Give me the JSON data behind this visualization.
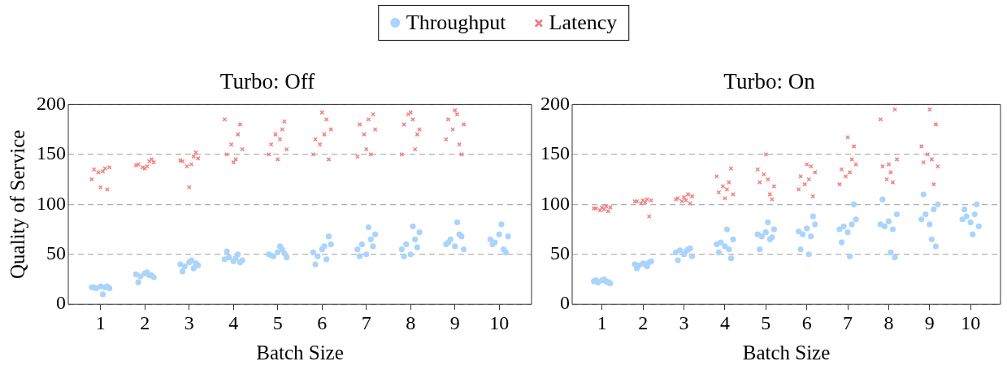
{
  "chart_data": [
    {
      "type": "scatter",
      "title": "Turbo: Off",
      "xlabel": "Batch Size",
      "ylabel": "Quality of Service",
      "xlim": [
        0.27,
        10.73
      ],
      "xticks": [
        1,
        2,
        3,
        4,
        5,
        6,
        7,
        8,
        9,
        10
      ],
      "ylim": [
        0,
        200
      ],
      "yticks": [
        0,
        50,
        100,
        150,
        200
      ],
      "grid": "y",
      "legend": "top",
      "series": [
        {
          "name": "Throughput",
          "color": "#aad4fb",
          "marker": "circle",
          "x": [
            0.8,
            0.9,
            1,
            1.1,
            1.2,
            0.85,
            1.05,
            1.15,
            1.8,
            1.9,
            2,
            2.1,
            2.2,
            1.85,
            2.05,
            2.15,
            2.8,
            2.9,
            3,
            3.1,
            3.2,
            2.85,
            3.05,
            3.15,
            3.8,
            3.9,
            4,
            4.1,
            4.2,
            3.85,
            4.05,
            4.15,
            4.8,
            4.9,
            5,
            5.1,
            5.2,
            4.85,
            5.05,
            5.15,
            5.8,
            5.9,
            6,
            6.1,
            6.2,
            5.85,
            6.05,
            6.15,
            6.8,
            6.9,
            7,
            7.1,
            7.2,
            6.85,
            7.05,
            7.15,
            7.8,
            7.9,
            8,
            8.1,
            8.2,
            7.85,
            8.05,
            8.15,
            8.8,
            8.9,
            9,
            9.1,
            9.2,
            8.85,
            9.05,
            9.15,
            9.8,
            9.9,
            10,
            10.1,
            10.2,
            9.85,
            10.05,
            10.15
          ],
          "values": [
            17,
            16,
            18,
            17,
            16,
            17,
            10,
            18,
            30,
            28,
            31,
            29,
            27,
            22,
            32,
            29,
            40,
            38,
            42,
            36,
            39,
            33,
            44,
            41,
            45,
            47,
            43,
            50,
            44,
            53,
            46,
            42,
            50,
            48,
            52,
            55,
            47,
            49,
            58,
            51,
            52,
            48,
            55,
            45,
            60,
            40,
            58,
            68,
            55,
            60,
            50,
            65,
            70,
            48,
            77,
            58,
            55,
            60,
            50,
            65,
            72,
            48,
            78,
            57,
            60,
            65,
            58,
            70,
            55,
            62,
            82,
            68,
            65,
            62,
            70,
            55,
            68,
            60,
            80,
            52
          ]
        },
        {
          "name": "Latency",
          "color": "#f08080",
          "marker": "cross",
          "x": [
            0.85,
            1.05,
            1.2,
            0.95,
            1.1,
            0.8,
            1.15,
            1,
            1.85,
            2.05,
            2.2,
            1.95,
            2.1,
            1.8,
            2.15,
            2,
            2.85,
            3.05,
            3.2,
            2.95,
            3.1,
            2.8,
            3.15,
            3,
            3.85,
            4.05,
            4.2,
            3.95,
            4.1,
            3.8,
            4.15,
            4,
            4.85,
            5.05,
            5.2,
            4.95,
            5.1,
            4.8,
            5.15,
            5,
            5.85,
            6.05,
            6.2,
            5.95,
            6.1,
            5.8,
            6.15,
            6,
            6.85,
            7.05,
            7.2,
            6.95,
            7.1,
            6.8,
            7.15,
            7,
            7.85,
            8.05,
            8.2,
            7.95,
            8.1,
            7.8,
            8.15,
            8,
            8.85,
            9.05,
            9.2,
            8.95,
            9.1,
            8.8,
            9.15,
            9
          ],
          "values": [
            135,
            133,
            137,
            132,
            136,
            125,
            115,
            117,
            140,
            138,
            142,
            137,
            143,
            139,
            145,
            136,
            143,
            140,
            146,
            138,
            148,
            144,
            152,
            117,
            150,
            145,
            155,
            160,
            170,
            185,
            180,
            142,
            160,
            165,
            155,
            170,
            175,
            150,
            183,
            145,
            165,
            170,
            175,
            160,
            185,
            150,
            145,
            192,
            180,
            185,
            175,
            170,
            150,
            148,
            190,
            155,
            180,
            185,
            175,
            190,
            155,
            150,
            170,
            192,
            185,
            190,
            180,
            175,
            160,
            165,
            150,
            194
          ]
        }
      ]
    },
    {
      "type": "scatter",
      "title": "Turbo: On",
      "xlabel": "Batch Size",
      "xlim": [
        0.27,
        10.73
      ],
      "xticks": [
        1,
        2,
        3,
        4,
        5,
        6,
        7,
        8,
        9,
        10
      ],
      "ylim": [
        0,
        200
      ],
      "yticks": [
        0,
        50,
        100,
        150,
        200
      ],
      "grid": "y",
      "series": [
        {
          "color": "#aad4fb",
          "marker": "circle",
          "x": [
            0.8,
            0.9,
            1,
            1.1,
            1.2,
            0.85,
            1.05,
            1.15,
            1.8,
            1.9,
            2,
            2.1,
            2.2,
            1.85,
            2.05,
            2.15,
            2.8,
            2.9,
            3,
            3.1,
            3.2,
            2.85,
            3.05,
            3.15,
            3.8,
            3.9,
            4,
            4.1,
            4.2,
            3.85,
            4.05,
            4.15,
            4.8,
            4.9,
            5,
            5.1,
            5.2,
            4.85,
            5.05,
            5.15,
            5.8,
            5.9,
            6,
            6.1,
            6.2,
            5.85,
            6.05,
            6.15,
            6.8,
            6.9,
            7,
            7.1,
            7.2,
            6.85,
            7.05,
            7.15,
            7.8,
            7.9,
            8,
            8.1,
            8.2,
            7.85,
            8.05,
            8.15,
            8.8,
            8.9,
            9,
            9.1,
            9.2,
            8.85,
            9.05,
            9.15,
            9.8,
            9.9,
            10,
            10.1,
            10.2,
            9.85,
            10.05,
            10.15
          ],
          "values": [
            23,
            22,
            24,
            23,
            21,
            24,
            25,
            22,
            40,
            39,
            41,
            38,
            43,
            36,
            40,
            42,
            52,
            54,
            50,
            55,
            48,
            44,
            53,
            56,
            60,
            62,
            58,
            55,
            65,
            52,
            75,
            46,
            70,
            68,
            72,
            65,
            75,
            55,
            82,
            67,
            73,
            70,
            76,
            68,
            80,
            55,
            50,
            88,
            75,
            78,
            72,
            80,
            85,
            62,
            48,
            100,
            80,
            78,
            83,
            75,
            90,
            105,
            52,
            47,
            85,
            90,
            80,
            95,
            100,
            110,
            65,
            58,
            85,
            88,
            82,
            90,
            78,
            95,
            70,
            100
          ]
        },
        {
          "color": "#f08080",
          "marker": "cross",
          "x": [
            0.85,
            1.05,
            1.2,
            0.95,
            1.1,
            0.8,
            1.15,
            1,
            1.85,
            2.05,
            2.2,
            1.95,
            2.1,
            1.8,
            2.15,
            2,
            2.85,
            3.05,
            3.2,
            2.95,
            3.1,
            2.8,
            3.15,
            3,
            3.85,
            4.05,
            4.2,
            3.95,
            4.1,
            3.8,
            4.15,
            4,
            4.85,
            5.05,
            5.2,
            4.95,
            5.1,
            4.8,
            5.15,
            5,
            5.85,
            6.05,
            6.2,
            5.95,
            6.1,
            5.8,
            6.15,
            6,
            6.85,
            7.05,
            7.2,
            6.95,
            7.1,
            6.8,
            7.15,
            7,
            7.85,
            8.05,
            8.2,
            7.95,
            8.1,
            7.8,
            8.15,
            8,
            8.85,
            9.05,
            9.2,
            8.95,
            9.1,
            8.8,
            9.15,
            9
          ],
          "values": [
            96,
            95,
            97,
            94,
            98,
            96,
            93,
            97,
            103,
            102,
            104,
            101,
            105,
            103,
            88,
            104,
            106,
            104,
            108,
            103,
            110,
            105,
            101,
            107,
            112,
            115,
            110,
            118,
            122,
            128,
            136,
            106,
            122,
            125,
            118,
            130,
            110,
            135,
            105,
            150,
            128,
            125,
            132,
            120,
            138,
            115,
            108,
            140,
            135,
            132,
            140,
            128,
            145,
            120,
            158,
            167,
            138,
            132,
            145,
            125,
            122,
            185,
            195,
            140,
            142,
            145,
            138,
            150,
            120,
            158,
            180,
            195
          ]
        }
      ]
    }
  ]
}
